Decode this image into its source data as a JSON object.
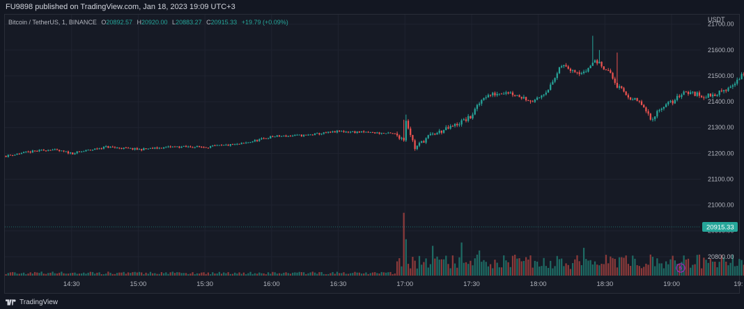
{
  "header": {
    "published_line": "FU9898 published on TradingView.com, Jan 18, 2023 19:09 UTC+3"
  },
  "legend": {
    "symbol": "Bitcoin / TetherUS, 1, BINANCE",
    "o_label": "O",
    "o_value": "20892.57",
    "h_label": "H",
    "h_value": "20920.00",
    "l_label": "L",
    "l_value": "20883.27",
    "c_label": "C",
    "c_value": "20915.33",
    "change": "+19.79 (+0.09%)"
  },
  "footer": {
    "brand": "TradingView"
  },
  "colors": {
    "up": "#26a69a",
    "down": "#ef5350",
    "up_volume": "#1e6b64",
    "down_volume": "#8c3a3a",
    "background": "#131722",
    "grid": "#1f2330",
    "price_tag": "#26a69a",
    "flash_icon": "#9c27b0"
  },
  "icons": {
    "flash": "lightning-icon",
    "logo": "tradingview-logo-icon"
  },
  "chart_data": {
    "type": "candlestick",
    "currency": "USDT",
    "y_ticks": [
      "21700.00",
      "21600.00",
      "21500.00",
      "21400.00",
      "21300.00",
      "21200.00",
      "21100.00",
      "21000.00",
      "20900.00",
      "20800.00"
    ],
    "y_tick_values": [
      21700,
      21600,
      21500,
      21400,
      21300,
      21200,
      21100,
      21000,
      20900,
      20800
    ],
    "x_ticks": [
      "14:30",
      "15:00",
      "15:30",
      "16:00",
      "16:30",
      "17:00",
      "17:30",
      "18:00",
      "18:30",
      "19:00",
      "19:"
    ],
    "x_tick_minutes": [
      870,
      900,
      930,
      960,
      990,
      1020,
      1050,
      1080,
      1110,
      1140,
      1170
    ],
    "last_price": "20915.33",
    "last_price_value": 20915.33,
    "x_start_minute": 840,
    "x_end_minute": 1150,
    "ylim": [
      20735,
      21710
    ],
    "anchors": [
      [
        0,
        21190
      ],
      [
        10,
        21205
      ],
      [
        20,
        21215
      ],
      [
        30,
        21200
      ],
      [
        45,
        21225
      ],
      [
        60,
        21215
      ],
      [
        75,
        21225
      ],
      [
        90,
        21225
      ],
      [
        105,
        21235
      ],
      [
        120,
        21265
      ],
      [
        135,
        21270
      ],
      [
        150,
        21285
      ],
      [
        165,
        21280
      ],
      [
        175,
        21275
      ],
      [
        179,
        21255
      ],
      [
        180,
        21330
      ],
      [
        184,
        21220
      ],
      [
        190,
        21265
      ],
      [
        200,
        21300
      ],
      [
        209,
        21340
      ],
      [
        215,
        21420
      ],
      [
        225,
        21440
      ],
      [
        238,
        21400
      ],
      [
        245,
        21460
      ],
      [
        250,
        21540
      ],
      [
        260,
        21510
      ],
      [
        265,
        21560
      ],
      [
        271,
        21520
      ],
      [
        275,
        21460
      ],
      [
        280,
        21420
      ],
      [
        286,
        21390
      ],
      [
        290,
        21330
      ],
      [
        295,
        21380
      ],
      [
        300,
        21400
      ],
      [
        305,
        21440
      ],
      [
        315,
        21420
      ],
      [
        323,
        21440
      ],
      [
        330,
        21490
      ],
      [
        335,
        21540
      ],
      [
        340,
        21500
      ],
      [
        345,
        21490
      ],
      [
        355,
        21460
      ],
      [
        365,
        21430
      ],
      [
        372,
        21380
      ],
      [
        378,
        21330
      ],
      [
        382,
        21300
      ],
      [
        386,
        21250
      ],
      [
        390,
        21180
      ],
      [
        393,
        21100
      ],
      [
        398,
        21020
      ],
      [
        401,
        20890
      ],
      [
        404,
        20950
      ],
      [
        407,
        21050
      ],
      [
        410,
        21030
      ],
      [
        413,
        20990
      ],
      [
        416,
        20950
      ],
      [
        419,
        20910
      ],
      [
        422,
        20880
      ],
      [
        425,
        20900
      ],
      [
        426,
        20915
      ]
    ],
    "spikes": [
      [
        179,
        21330
      ],
      [
        180,
        21350
      ],
      [
        184,
        21210
      ],
      [
        264,
        21655
      ],
      [
        267,
        21600
      ],
      [
        275,
        21590
      ],
      [
        401,
        20870
      ],
      [
        422,
        20860
      ]
    ],
    "volume_spikes": [
      [
        179,
        0.95
      ],
      [
        180,
        0.55
      ],
      [
        192,
        0.45
      ],
      [
        205,
        0.5
      ],
      [
        213,
        0.38
      ],
      [
        260,
        0.42
      ],
      [
        300,
        0.3
      ],
      [
        388,
        0.35
      ],
      [
        398,
        0.7
      ],
      [
        401,
        0.6
      ],
      [
        404,
        0.48
      ],
      [
        407,
        0.42
      ],
      [
        413,
        0.38
      ],
      [
        416,
        0.3
      ]
    ],
    "grid": true
  }
}
